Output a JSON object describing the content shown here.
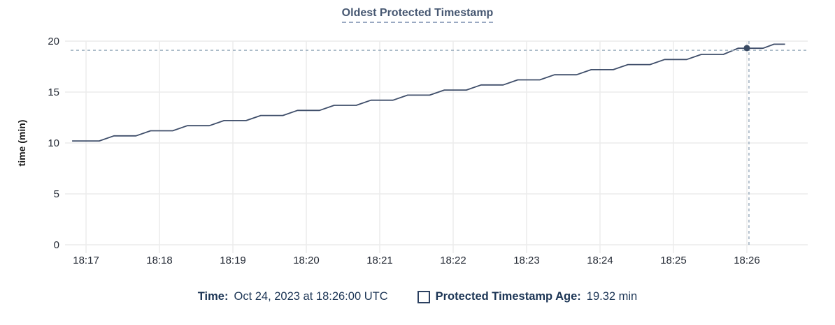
{
  "header": {
    "title": "Oldest Protected Timestamp"
  },
  "legend": {
    "time_label": "Time:",
    "time_value": "Oct 24, 2023 at 18:26:00 UTC",
    "series_label": "Protected Timestamp Age:",
    "series_value": "19.32 min"
  },
  "colors": {
    "title": "#475872",
    "series_line": "#3f4e6a",
    "hover_dot": "#394a63",
    "crosshair_dash": "#9fb0c0",
    "gridline": "#ececec",
    "tick_text": "#242a35",
    "legend_text": "#1c3555"
  },
  "chart_data": {
    "type": "line",
    "title": "Oldest Protected Timestamp",
    "xlabel": "",
    "ylabel": "time (min)",
    "grid": true,
    "legend_position": "bottom-center",
    "x_tick_labels": [
      "18:17",
      "18:18",
      "18:19",
      "18:20",
      "18:21",
      "18:22",
      "18:23",
      "18:24",
      "18:25",
      "18:26"
    ],
    "x_tick_positions_min": [
      0,
      1,
      2,
      3,
      4,
      5,
      6,
      7,
      8,
      9
    ],
    "xlim_min": [
      -0.286,
      9.829
    ],
    "y_ticks": [
      0,
      5,
      10,
      15,
      20
    ],
    "ylim": [
      0,
      20
    ],
    "series": [
      {
        "name": "Protected Timestamp Age",
        "unit": "min",
        "color": "#3f4e6a",
        "points_t_min_value_min": [
          [
            -0.19,
            10.2
          ],
          [
            0.18,
            10.2
          ],
          [
            0.38,
            10.7
          ],
          [
            0.68,
            10.7
          ],
          [
            0.88,
            11.2
          ],
          [
            1.18,
            11.2
          ],
          [
            1.38,
            11.7
          ],
          [
            1.68,
            11.7
          ],
          [
            1.88,
            12.2
          ],
          [
            2.18,
            12.2
          ],
          [
            2.38,
            12.7
          ],
          [
            2.68,
            12.7
          ],
          [
            2.88,
            13.2
          ],
          [
            3.18,
            13.2
          ],
          [
            3.38,
            13.7
          ],
          [
            3.68,
            13.7
          ],
          [
            3.88,
            14.2
          ],
          [
            4.18,
            14.2
          ],
          [
            4.38,
            14.7
          ],
          [
            4.68,
            14.7
          ],
          [
            4.88,
            15.2
          ],
          [
            5.18,
            15.2
          ],
          [
            5.38,
            15.7
          ],
          [
            5.68,
            15.7
          ],
          [
            5.88,
            16.2
          ],
          [
            6.18,
            16.2
          ],
          [
            6.38,
            16.7
          ],
          [
            6.68,
            16.7
          ],
          [
            6.88,
            17.2
          ],
          [
            7.18,
            17.2
          ],
          [
            7.38,
            17.7
          ],
          [
            7.68,
            17.7
          ],
          [
            7.88,
            18.2
          ],
          [
            8.18,
            18.2
          ],
          [
            8.38,
            18.7
          ],
          [
            8.68,
            18.7
          ],
          [
            8.88,
            19.3
          ],
          [
            9.22,
            19.3
          ],
          [
            9.37,
            19.7
          ],
          [
            9.52,
            19.7
          ]
        ]
      }
    ],
    "hover": {
      "time_label": "Oct 24, 2023 at 18:26:00 UTC",
      "t_min": 9.0,
      "value": 19.32,
      "crosshair_y_value": 19.1
    }
  }
}
